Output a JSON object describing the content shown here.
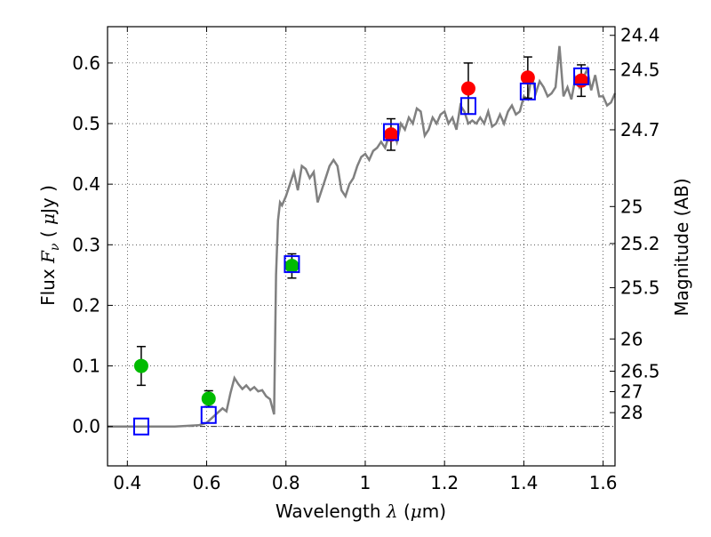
{
  "chart_data": {
    "type": "scatter",
    "xlabel": {
      "pre": "Wavelength  ",
      "sym": "λ",
      "post": " (",
      "mu": "μ",
      "unit": "m)"
    },
    "ylabel": {
      "pre": "Flux  ",
      "sym": "F",
      "sub": "ν",
      "post": "  ( ",
      "mu": "μ",
      "unit": "Jy )"
    },
    "y2label": "Magnitude (AB)",
    "xlim": [
      0.35,
      1.63
    ],
    "ylim": [
      -0.065,
      0.66
    ],
    "grid": true,
    "x_ticks": [
      0.4,
      0.6,
      0.8,
      1.0,
      1.2,
      1.4,
      1.6
    ],
    "x_tick_labels": [
      "0.4",
      "0.6",
      "0.8",
      "1",
      "1.2",
      "1.4",
      "1.6"
    ],
    "y_ticks": [
      0.0,
      0.1,
      0.2,
      0.3,
      0.4,
      0.5,
      0.6
    ],
    "y_tick_labels": [
      "0.0",
      "0.1",
      "0.2",
      "0.3",
      "0.4",
      "0.5",
      "0.6"
    ],
    "y2_ticks": [
      {
        "label": "24.4",
        "flux": 0.6457
      },
      {
        "label": "24.5",
        "flux": 0.5888
      },
      {
        "label": "24.7",
        "flux": 0.4898
      },
      {
        "label": "25",
        "flux": 0.3631
      },
      {
        "label": "25.2",
        "flux": 0.302
      },
      {
        "label": "25.5",
        "flux": 0.2291
      },
      {
        "label": "26",
        "flux": 0.1445
      },
      {
        "label": "26.5",
        "flux": 0.0912
      },
      {
        "label": "27",
        "flux": 0.0575
      },
      {
        "label": "28",
        "flux": 0.0229
      }
    ],
    "series": [
      {
        "kind": "line",
        "color": "#808080",
        "x": [
          0.35,
          0.44,
          0.52,
          0.58,
          0.6,
          0.62,
          0.64,
          0.65,
          0.66,
          0.67,
          0.68,
          0.69,
          0.7,
          0.71,
          0.72,
          0.73,
          0.74,
          0.75,
          0.76,
          0.77,
          0.775,
          0.78,
          0.785,
          0.79,
          0.8,
          0.81,
          0.82,
          0.83,
          0.84,
          0.85,
          0.86,
          0.87,
          0.88,
          0.89,
          0.9,
          0.91,
          0.92,
          0.93,
          0.94,
          0.95,
          0.96,
          0.97,
          0.98,
          0.99,
          1.0,
          1.01,
          1.02,
          1.03,
          1.04,
          1.05,
          1.06,
          1.07,
          1.08,
          1.09,
          1.1,
          1.11,
          1.12,
          1.13,
          1.14,
          1.15,
          1.16,
          1.17,
          1.18,
          1.19,
          1.2,
          1.21,
          1.22,
          1.23,
          1.24,
          1.25,
          1.26,
          1.27,
          1.28,
          1.29,
          1.3,
          1.31,
          1.32,
          1.33,
          1.34,
          1.35,
          1.36,
          1.37,
          1.38,
          1.39,
          1.4,
          1.41,
          1.42,
          1.43,
          1.44,
          1.45,
          1.46,
          1.47,
          1.48,
          1.49,
          1.5,
          1.51,
          1.52,
          1.53,
          1.54,
          1.55,
          1.56,
          1.57,
          1.58,
          1.59,
          1.6,
          1.61,
          1.62,
          1.63
        ],
        "y": [
          0.0,
          0.0,
          0.0,
          0.002,
          0.006,
          0.018,
          0.03,
          0.025,
          0.055,
          0.08,
          0.07,
          0.062,
          0.068,
          0.06,
          0.065,
          0.058,
          0.06,
          0.05,
          0.045,
          0.02,
          0.25,
          0.34,
          0.37,
          0.365,
          0.38,
          0.4,
          0.42,
          0.39,
          0.43,
          0.425,
          0.41,
          0.42,
          0.37,
          0.39,
          0.41,
          0.43,
          0.44,
          0.43,
          0.39,
          0.38,
          0.4,
          0.41,
          0.43,
          0.445,
          0.45,
          0.44,
          0.455,
          0.46,
          0.47,
          0.46,
          0.48,
          0.49,
          0.47,
          0.5,
          0.49,
          0.51,
          0.5,
          0.525,
          0.52,
          0.48,
          0.49,
          0.51,
          0.5,
          0.515,
          0.52,
          0.5,
          0.51,
          0.49,
          0.53,
          0.52,
          0.5,
          0.505,
          0.5,
          0.51,
          0.5,
          0.52,
          0.495,
          0.5,
          0.515,
          0.5,
          0.52,
          0.53,
          0.515,
          0.52,
          0.545,
          0.54,
          0.58,
          0.55,
          0.57,
          0.56,
          0.545,
          0.55,
          0.56,
          0.628,
          0.545,
          0.56,
          0.54,
          0.575,
          0.56,
          0.575,
          0.59,
          0.555,
          0.58,
          0.545,
          0.545,
          0.53,
          0.535,
          0.55
        ]
      },
      {
        "kind": "points",
        "marker": "circle",
        "color": "#00bb00",
        "x": [
          0.435,
          0.605,
          0.815
        ],
        "y": [
          0.1,
          0.046,
          0.265
        ],
        "err": [
          0.032,
          0.013,
          0.02
        ]
      },
      {
        "kind": "points",
        "marker": "circle",
        "color": "#ff0000",
        "x": [
          1.065,
          1.26,
          1.41,
          1.545
        ],
        "y": [
          0.482,
          0.558,
          0.576,
          0.571
        ],
        "err": [
          0.026,
          0.042,
          0.034,
          0.026
        ]
      },
      {
        "kind": "points",
        "marker": "square",
        "color": "#0000ff",
        "x": [
          0.435,
          0.605,
          0.815,
          1.065,
          1.26,
          1.41,
          1.545
        ],
        "y": [
          0.0,
          0.019,
          0.268,
          0.486,
          0.529,
          0.553,
          0.578
        ]
      }
    ]
  }
}
